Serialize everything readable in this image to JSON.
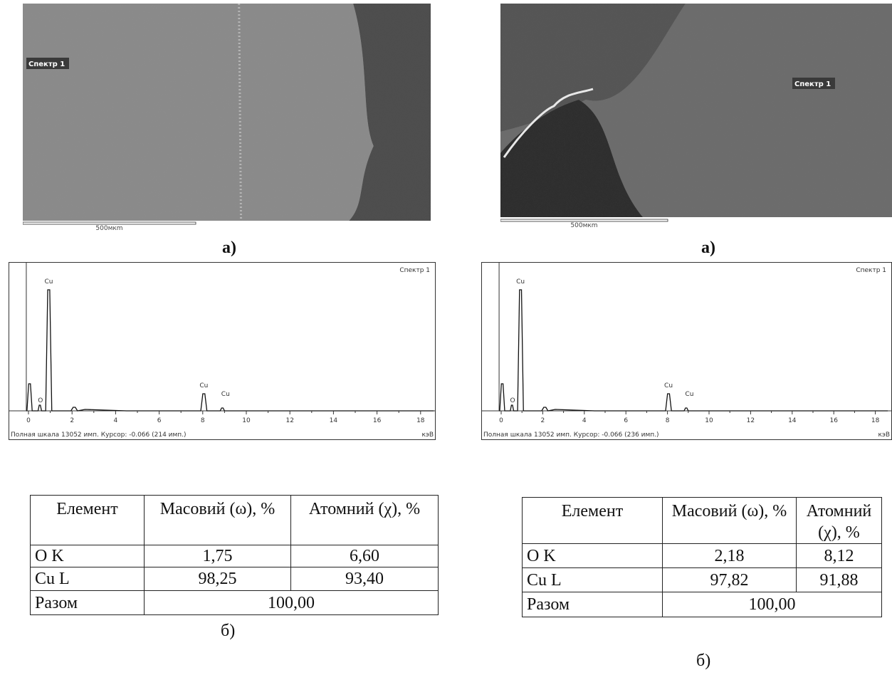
{
  "panels": [
    {
      "image": {
        "label": "Спектр 1",
        "scale": "500мкm"
      },
      "image_caption": "а)",
      "spectrum": {
        "title": "Спектр 1",
        "peak_labels": [
          "Cu",
          "O",
          "Cu",
          "Cu"
        ],
        "xticks": [
          0,
          2,
          4,
          6,
          8,
          10,
          12,
          14,
          16,
          18
        ],
        "footer": "Полная шкала 13052 имп. Курсор: -0.066  (214 имп.)",
        "unit": "кэВ"
      },
      "table": {
        "header": [
          "Елемент",
          "Масовий (ω), %",
          "Атомний (χ), %"
        ],
        "rows": [
          [
            "O K",
            "1,75",
            "6,60"
          ],
          [
            "Cu L",
            "98,25",
            "93,40"
          ],
          [
            "Разом",
            "100,00"
          ]
        ]
      },
      "table_caption": "б)"
    },
    {
      "image": {
        "label": "Спектр 1",
        "scale": "500мкm"
      },
      "image_caption": "а)",
      "spectrum": {
        "title": "Спектр 1",
        "peak_labels": [
          "Cu",
          "O",
          "Cu",
          "Cu"
        ],
        "xticks": [
          0,
          2,
          4,
          6,
          8,
          10,
          12,
          14,
          16,
          18
        ],
        "footer": "Полная шкала 13052 имп. Курсор: -0.066  (236 имп.)",
        "unit": "кэВ"
      },
      "table": {
        "header": [
          "Елемент",
          "Масовий (ω), %",
          "Атомний (χ), %"
        ],
        "rows": [
          [
            "O K",
            "2,18",
            "8,12"
          ],
          [
            "Cu L",
            "97,82",
            "91,88"
          ],
          [
            "Разом",
            "100,00"
          ]
        ]
      },
      "table_caption": "б)"
    }
  ]
}
